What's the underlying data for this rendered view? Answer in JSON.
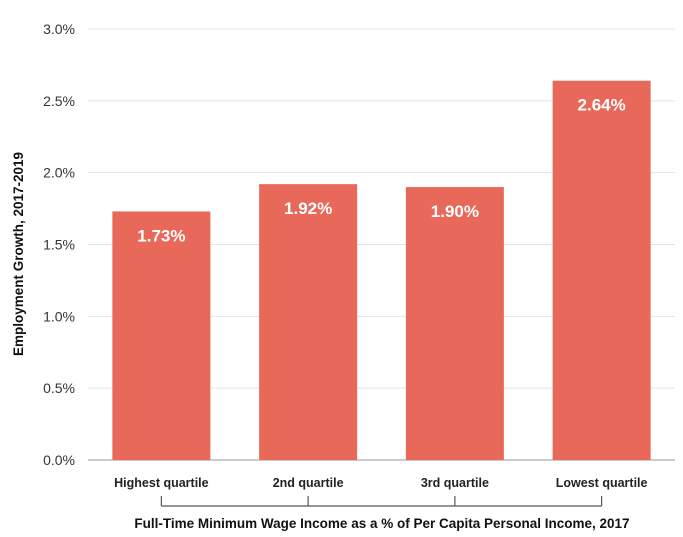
{
  "chart_data": {
    "type": "bar",
    "categories": [
      "Highest quartile",
      "2nd quartile",
      "3rd quartile",
      "Lowest quartile"
    ],
    "values": [
      1.73,
      1.92,
      1.9,
      2.64
    ],
    "data_labels": [
      "1.73%",
      "1.92%",
      "1.90%",
      "2.64%"
    ],
    "ylabel": "Employment Growth, 2017-2019",
    "xlabel": "Full-Time Minimum Wage Income as a % of Per Capita Personal Income, 2017",
    "ylim": [
      0,
      3.0
    ],
    "yticks": [
      0,
      0.5,
      1.0,
      1.5,
      2.0,
      2.5,
      3.0
    ],
    "ytick_labels": [
      "0.0%",
      "0.5%",
      "1.0%",
      "1.5%",
      "2.0%",
      "2.5%",
      "3.0%"
    ],
    "grid": true,
    "colors": {
      "bar": "#E8695A",
      "grid": "#e4e4e4"
    }
  }
}
